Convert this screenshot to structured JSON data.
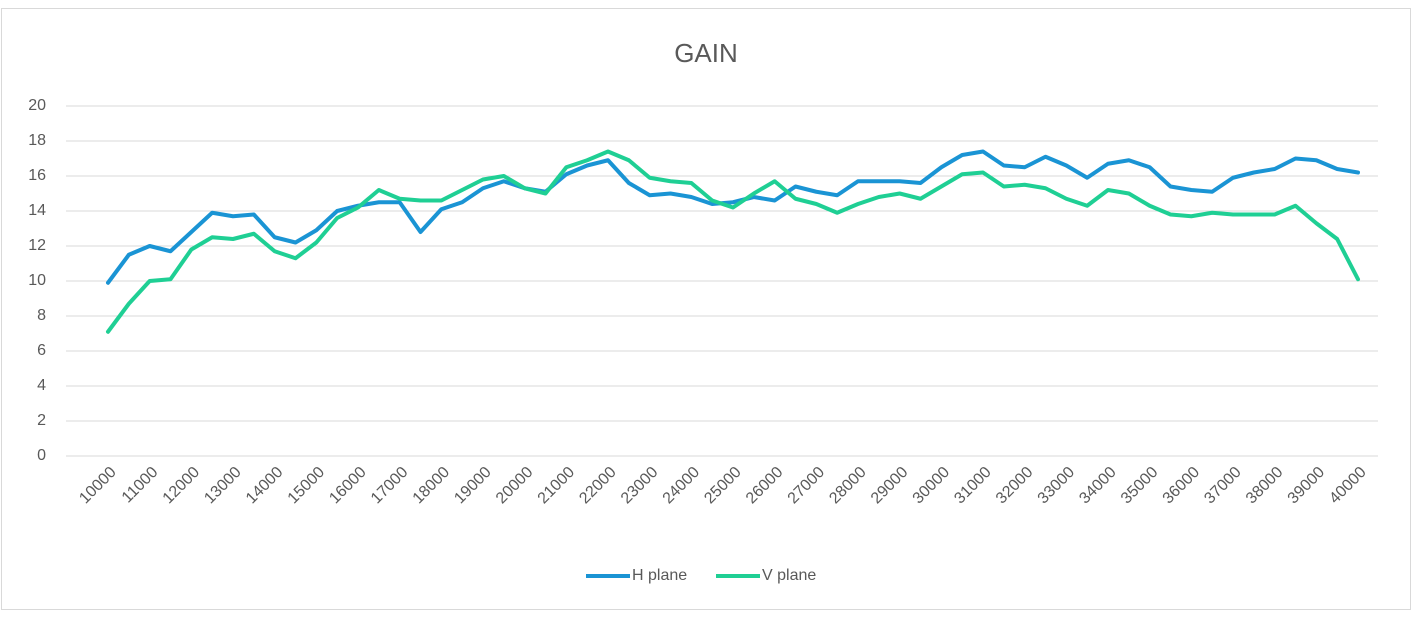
{
  "chart_data": {
    "type": "line",
    "title": "GAIN",
    "categories": [
      "10000",
      null,
      "11000",
      null,
      "12000",
      null,
      "13000",
      null,
      "14000",
      null,
      "15000",
      null,
      "16000",
      null,
      "17000",
      null,
      "18000",
      null,
      "19000",
      null,
      "20000",
      null,
      "21000",
      null,
      "22000",
      null,
      "23000",
      null,
      "24000",
      null,
      "25000",
      null,
      "26000",
      null,
      "27000",
      null,
      "28000",
      null,
      "29000",
      null,
      "30000",
      null,
      "31000",
      null,
      "32000",
      null,
      "33000",
      null,
      "34000",
      null,
      "35000",
      null,
      "36000",
      null,
      "37000",
      null,
      "38000",
      null,
      "39000",
      null,
      "40000"
    ],
    "series": [
      {
        "name": "H plane",
        "color": "#1a94d4",
        "values": [
          9.9,
          11.5,
          12.0,
          11.7,
          12.8,
          13.9,
          13.7,
          13.8,
          12.5,
          12.2,
          12.9,
          14.0,
          14.3,
          14.5,
          14.5,
          12.8,
          14.1,
          14.5,
          15.3,
          15.7,
          15.3,
          15.1,
          16.1,
          16.6,
          16.9,
          15.6,
          14.9,
          15.0,
          14.8,
          14.4,
          14.5,
          14.8,
          14.6,
          15.4,
          15.1,
          14.9,
          15.7,
          15.7,
          15.7,
          15.6,
          16.5,
          17.2,
          17.4,
          16.6,
          16.5,
          17.1,
          16.6,
          15.9,
          16.7,
          16.9,
          16.5,
          15.4,
          15.2,
          15.1,
          15.9,
          16.2,
          16.4,
          17.0,
          16.9,
          16.4,
          16.2
        ]
      },
      {
        "name": "V plane",
        "color": "#1fcf94",
        "values": [
          7.1,
          8.7,
          10.0,
          10.1,
          11.8,
          12.5,
          12.4,
          12.7,
          11.7,
          11.3,
          12.2,
          13.6,
          14.2,
          15.2,
          14.7,
          14.6,
          14.6,
          15.2,
          15.8,
          16.0,
          15.3,
          15.0,
          16.5,
          16.9,
          17.4,
          16.9,
          15.9,
          15.7,
          15.6,
          14.6,
          14.2,
          15.0,
          15.7,
          14.7,
          14.4,
          13.9,
          14.4,
          14.8,
          15.0,
          14.7,
          15.4,
          16.1,
          16.2,
          15.4,
          15.5,
          15.3,
          14.7,
          14.3,
          15.2,
          15.0,
          14.3,
          13.8,
          13.7,
          13.9,
          13.8,
          13.8,
          13.8,
          14.3,
          13.3,
          12.4,
          10.1
        ]
      }
    ],
    "ylim": [
      0,
      20
    ],
    "yticks": [
      0,
      2,
      4,
      6,
      8,
      10,
      12,
      14,
      16,
      18,
      20
    ],
    "grid": true,
    "legend": "bottom"
  }
}
